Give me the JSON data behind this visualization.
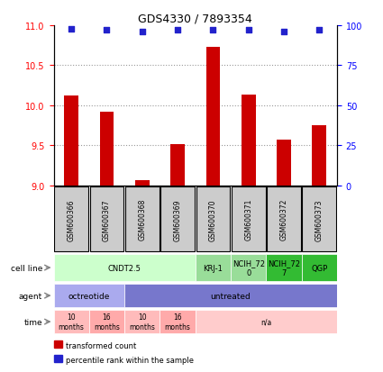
{
  "title": "GDS4330 / 7893354",
  "samples": [
    "GSM600366",
    "GSM600367",
    "GSM600368",
    "GSM600369",
    "GSM600370",
    "GSM600371",
    "GSM600372",
    "GSM600373"
  ],
  "bar_values": [
    10.12,
    9.92,
    9.07,
    9.52,
    10.73,
    10.14,
    9.57,
    9.75
  ],
  "percentile_values": [
    98,
    97,
    96,
    97,
    97,
    97,
    96,
    97
  ],
  "ylim": [
    9.0,
    11.0
  ],
  "y_left_ticks": [
    9.0,
    9.5,
    10.0,
    10.5,
    11.0
  ],
  "y_right_ticks": [
    0,
    25,
    50,
    75,
    100
  ],
  "bar_color": "#cc0000",
  "dot_color": "#2222cc",
  "cell_line_data": [
    {
      "label": "CNDT2.5",
      "start": 0,
      "end": 4,
      "color": "#ccffcc"
    },
    {
      "label": "KRJ-1",
      "start": 4,
      "end": 5,
      "color": "#99dd99"
    },
    {
      "label": "NCIH_72\n0",
      "start": 5,
      "end": 6,
      "color": "#99dd99"
    },
    {
      "label": "NCIH_72\n7",
      "start": 6,
      "end": 7,
      "color": "#33bb33"
    },
    {
      "label": "QGP",
      "start": 7,
      "end": 8,
      "color": "#33bb33"
    }
  ],
  "agent_data": [
    {
      "label": "octreotide",
      "start": 0,
      "end": 2,
      "color": "#aaaaee"
    },
    {
      "label": "untreated",
      "start": 2,
      "end": 8,
      "color": "#7777cc"
    }
  ],
  "time_data": [
    {
      "label": "10\nmonths",
      "start": 0,
      "end": 1,
      "color": "#ffbbbb"
    },
    {
      "label": "16\nmonths",
      "start": 1,
      "end": 2,
      "color": "#ffaaaa"
    },
    {
      "label": "10\nmonths",
      "start": 2,
      "end": 3,
      "color": "#ffbbbb"
    },
    {
      "label": "16\nmonths",
      "start": 3,
      "end": 4,
      "color": "#ffaaaa"
    },
    {
      "label": "n/a",
      "start": 4,
      "end": 8,
      "color": "#ffcccc"
    }
  ],
  "legend_items": [
    {
      "label": "transformed count",
      "color": "#cc0000"
    },
    {
      "label": "percentile rank within the sample",
      "color": "#2222cc"
    }
  ],
  "row_labels": [
    "cell line",
    "agent",
    "time"
  ],
  "sample_box_color": "#cccccc",
  "grid_color": "#999999"
}
